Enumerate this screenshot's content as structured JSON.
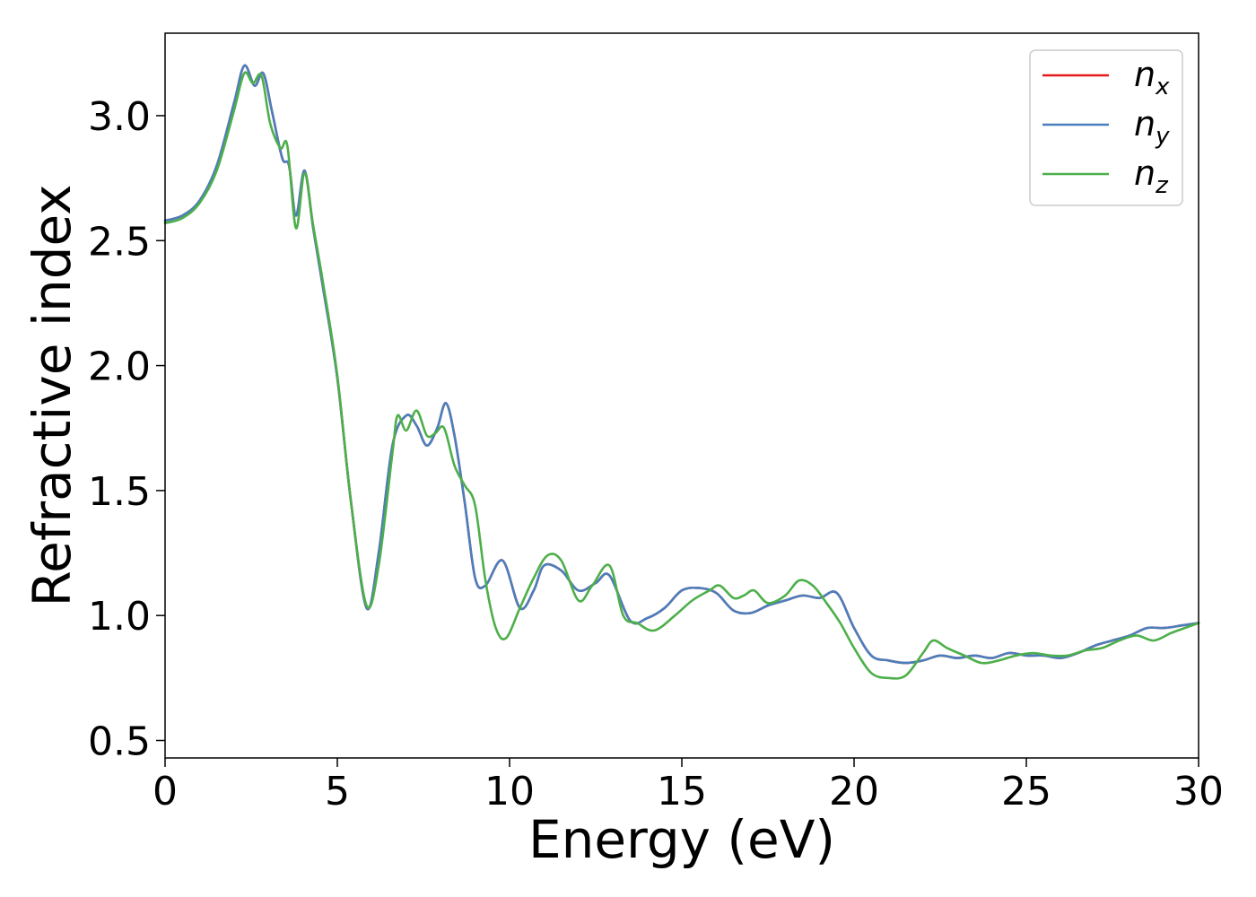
{
  "chart_data": {
    "type": "line",
    "title": "",
    "xlabel": "Energy (eV)",
    "ylabel": "Refractive index",
    "xlim": [
      0,
      30
    ],
    "ylim": [
      0.43,
      3.33
    ],
    "xticks": [
      0,
      5,
      10,
      15,
      20,
      25,
      30
    ],
    "xtick_labels": [
      "0",
      "5",
      "10",
      "15",
      "20",
      "25",
      "30"
    ],
    "yticks": [
      0.5,
      1.0,
      1.5,
      2.0,
      2.5,
      3.0
    ],
    "ytick_labels": [
      "0.5",
      "1.0",
      "1.5",
      "2.0",
      "2.5",
      "3.0"
    ],
    "grid": false,
    "legend_position": "top-right",
    "series": [
      {
        "name": "n_x",
        "label_main": "n",
        "label_sub": "x",
        "color": "#e41a1c",
        "x": [
          0,
          0.5,
          1.0,
          1.5,
          2.0,
          2.3,
          2.6,
          2.85,
          3.1,
          3.4,
          3.6,
          3.8,
          4.05,
          4.3,
          4.6,
          5.0,
          5.4,
          5.85,
          6.2,
          6.6,
          7.0,
          7.3,
          7.6,
          7.9,
          8.15,
          8.4,
          8.7,
          9.0,
          9.3,
          9.8,
          10.3,
          10.7,
          11.0,
          11.5,
          12.0,
          12.5,
          12.9,
          13.5,
          14.0,
          14.5,
          15.0,
          15.5,
          16.0,
          16.5,
          17.0,
          17.5,
          18.0,
          18.5,
          19.0,
          19.5,
          20.0,
          20.5,
          21.0,
          21.5,
          22.0,
          22.5,
          23.0,
          23.5,
          24.0,
          24.5,
          25.0,
          25.5,
          26.0,
          26.5,
          27.0,
          27.5,
          28.0,
          28.5,
          29.0,
          29.5,
          30.0
        ],
        "y": [
          2.58,
          2.6,
          2.66,
          2.8,
          3.05,
          3.2,
          3.12,
          3.17,
          3.02,
          2.83,
          2.8,
          2.6,
          2.78,
          2.55,
          2.3,
          1.95,
          1.45,
          1.03,
          1.25,
          1.68,
          1.8,
          1.76,
          1.68,
          1.75,
          1.85,
          1.72,
          1.45,
          1.15,
          1.12,
          1.22,
          1.03,
          1.1,
          1.2,
          1.18,
          1.1,
          1.13,
          1.16,
          0.98,
          0.99,
          1.03,
          1.1,
          1.11,
          1.09,
          1.02,
          1.01,
          1.04,
          1.06,
          1.08,
          1.07,
          1.09,
          0.95,
          0.84,
          0.82,
          0.81,
          0.82,
          0.84,
          0.83,
          0.84,
          0.83,
          0.85,
          0.84,
          0.84,
          0.83,
          0.85,
          0.88,
          0.9,
          0.92,
          0.95,
          0.95,
          0.96,
          0.97
        ]
      },
      {
        "name": "n_y",
        "label_main": "n",
        "label_sub": "y",
        "color": "#4a7fbd",
        "x": [
          0,
          0.5,
          1.0,
          1.5,
          2.0,
          2.3,
          2.6,
          2.85,
          3.1,
          3.4,
          3.6,
          3.8,
          4.05,
          4.3,
          4.6,
          5.0,
          5.4,
          5.85,
          6.2,
          6.6,
          7.0,
          7.3,
          7.6,
          7.9,
          8.15,
          8.4,
          8.7,
          9.0,
          9.3,
          9.8,
          10.3,
          10.7,
          11.0,
          11.5,
          12.0,
          12.5,
          12.9,
          13.5,
          14.0,
          14.5,
          15.0,
          15.5,
          16.0,
          16.5,
          17.0,
          17.5,
          18.0,
          18.5,
          19.0,
          19.5,
          20.0,
          20.5,
          21.0,
          21.5,
          22.0,
          22.5,
          23.0,
          23.5,
          24.0,
          24.5,
          25.0,
          25.5,
          26.0,
          26.5,
          27.0,
          27.5,
          28.0,
          28.5,
          29.0,
          29.5,
          30.0
        ],
        "y": [
          2.58,
          2.6,
          2.66,
          2.8,
          3.05,
          3.2,
          3.12,
          3.17,
          3.02,
          2.83,
          2.8,
          2.6,
          2.78,
          2.55,
          2.3,
          1.95,
          1.45,
          1.03,
          1.25,
          1.68,
          1.8,
          1.76,
          1.68,
          1.75,
          1.85,
          1.72,
          1.45,
          1.15,
          1.12,
          1.22,
          1.03,
          1.1,
          1.2,
          1.18,
          1.1,
          1.13,
          1.16,
          0.98,
          0.99,
          1.03,
          1.1,
          1.11,
          1.09,
          1.02,
          1.01,
          1.04,
          1.06,
          1.08,
          1.07,
          1.09,
          0.95,
          0.84,
          0.82,
          0.81,
          0.82,
          0.84,
          0.83,
          0.84,
          0.83,
          0.85,
          0.84,
          0.84,
          0.83,
          0.85,
          0.88,
          0.9,
          0.92,
          0.95,
          0.95,
          0.96,
          0.97
        ]
      },
      {
        "name": "n_z",
        "label_main": "n",
        "label_sub": "z",
        "color": "#4daf4a",
        "x": [
          0,
          0.5,
          1.0,
          1.5,
          2.0,
          2.3,
          2.55,
          2.8,
          3.05,
          3.35,
          3.55,
          3.8,
          4.05,
          4.3,
          4.6,
          5.0,
          5.4,
          5.85,
          6.2,
          6.6,
          6.75,
          7.0,
          7.3,
          7.6,
          7.85,
          8.1,
          8.4,
          8.7,
          9.0,
          9.3,
          9.6,
          9.9,
          10.3,
          10.7,
          11.1,
          11.5,
          12.0,
          12.4,
          12.9,
          13.3,
          13.7,
          14.2,
          14.8,
          15.3,
          15.8,
          16.1,
          16.5,
          16.8,
          17.1,
          17.5,
          18.0,
          18.4,
          18.8,
          19.2,
          19.6,
          20.0,
          20.5,
          21.0,
          21.5,
          22.0,
          22.3,
          22.7,
          23.2,
          23.7,
          24.2,
          24.7,
          25.2,
          25.7,
          26.2,
          26.7,
          27.2,
          27.7,
          28.2,
          28.7,
          29.2,
          29.6,
          30.0
        ],
        "y": [
          2.57,
          2.59,
          2.65,
          2.78,
          3.02,
          3.17,
          3.13,
          3.16,
          2.97,
          2.87,
          2.88,
          2.55,
          2.77,
          2.56,
          2.32,
          1.96,
          1.45,
          1.04,
          1.2,
          1.65,
          1.8,
          1.74,
          1.82,
          1.72,
          1.73,
          1.75,
          1.6,
          1.52,
          1.44,
          1.14,
          0.95,
          0.91,
          1.03,
          1.15,
          1.24,
          1.22,
          1.06,
          1.12,
          1.2,
          1.0,
          0.97,
          0.94,
          1.0,
          1.06,
          1.1,
          1.12,
          1.07,
          1.08,
          1.1,
          1.05,
          1.08,
          1.14,
          1.12,
          1.05,
          0.97,
          0.87,
          0.77,
          0.75,
          0.76,
          0.85,
          0.9,
          0.87,
          0.84,
          0.81,
          0.82,
          0.84,
          0.85,
          0.84,
          0.84,
          0.86,
          0.87,
          0.9,
          0.92,
          0.9,
          0.93,
          0.95,
          0.97
        ]
      }
    ]
  }
}
